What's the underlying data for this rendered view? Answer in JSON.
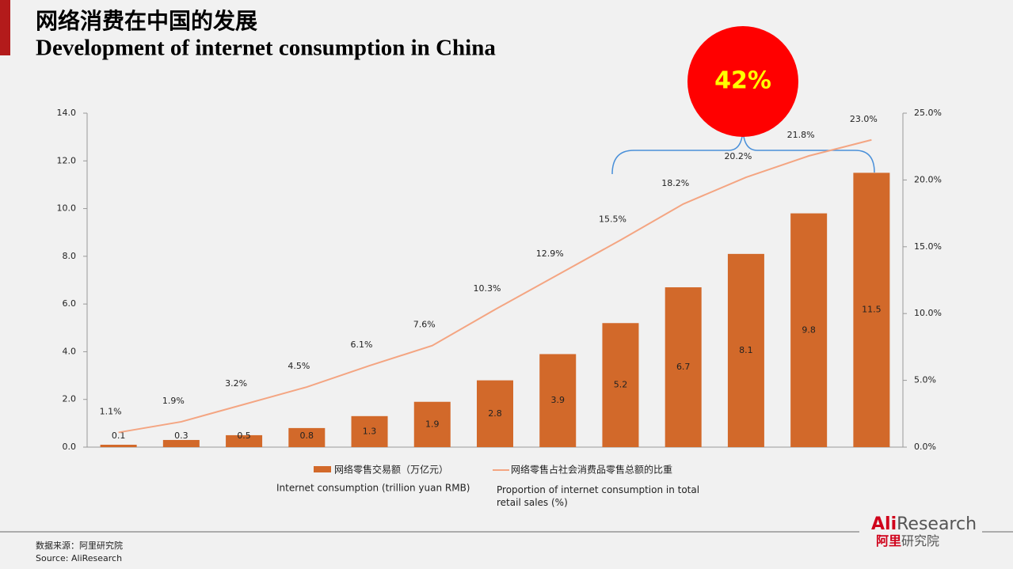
{
  "chart_data": {
    "type": "bar",
    "title": "网络消费在中国的发展",
    "subtitle": "Development of internet consumption in China",
    "annotation": "42%",
    "ylim": [
      0,
      14
    ],
    "yticks": [
      {
        "value": 0,
        "label": "0.0"
      },
      {
        "value": 2,
        "label": "2.0"
      },
      {
        "value": 4,
        "label": "4.0"
      },
      {
        "value": 6,
        "label": "6.0"
      },
      {
        "value": 8,
        "label": "8.0"
      },
      {
        "value": 10,
        "label": "10.0"
      },
      {
        "value": 12,
        "label": "12.0"
      },
      {
        "value": 14,
        "label": "14.0"
      }
    ],
    "y2lim": [
      0,
      25
    ],
    "y2ticks": [
      {
        "value": 0,
        "label": "0.0%"
      },
      {
        "value": 5,
        "label": "5.0%"
      },
      {
        "value": 10,
        "label": "10.0%"
      },
      {
        "value": 15,
        "label": "15.0%"
      },
      {
        "value": 20,
        "label": "20.0%"
      },
      {
        "value": 25,
        "label": "25.0%"
      }
    ],
    "grid": false,
    "series": [
      {
        "name": "网络零售交易额（万亿元）",
        "name_en": "Internet consumption (trillion yuan RMB)",
        "type": "bar",
        "color": "#d2692a",
        "values": [
          0.1,
          0.3,
          0.5,
          0.8,
          1.3,
          1.9,
          2.8,
          3.9,
          5.2,
          6.7,
          8.1,
          9.8,
          11.5
        ]
      },
      {
        "name": "网络零售占社会消费品零售总额的比重",
        "name_en": "Proportion of internet consumption in total retail sales (%)",
        "type": "line",
        "axis": "y2",
        "color": "#f4a582",
        "values": [
          1.1,
          1.9,
          3.2,
          4.5,
          6.1,
          7.6,
          10.3,
          12.9,
          15.5,
          18.2,
          20.2,
          21.8,
          23.0
        ],
        "value_labels": [
          "1.1%",
          "1.9%",
          "3.2%",
          "4.5%",
          "6.1%",
          "7.6%",
          "10.3%",
          "12.9%",
          "15.5%",
          "18.2%",
          "20.2%",
          "21.8%",
          "23.0%"
        ]
      }
    ]
  },
  "footer": {
    "source_cn": "数据来源：阿里研究院",
    "source_en": "Source:  AliResearch",
    "logo_ali": "Ali",
    "logo_research": "Research",
    "logo_cn_red": "阿里",
    "logo_cn_gray": "研究院"
  }
}
